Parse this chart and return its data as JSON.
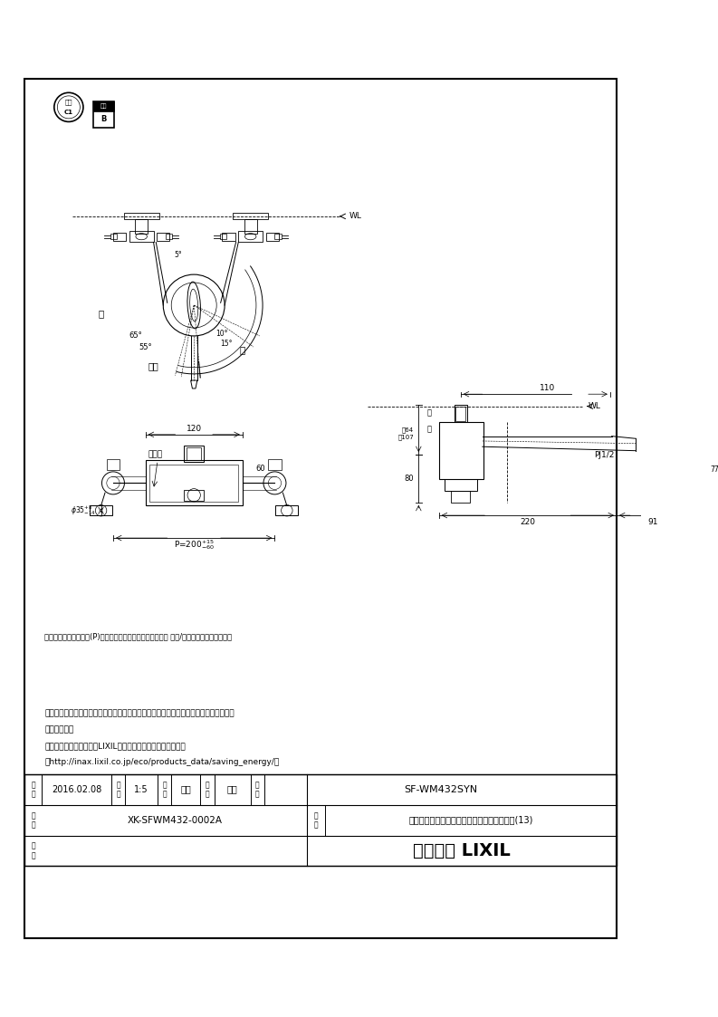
{
  "page_width": 7.93,
  "page_height": 11.23,
  "bg_color": "#ffffff",
  "line_color": "#000000",
  "notes": [
    "・流量調節栓は取付脚に付いています。取替えの際は、取付脚ごと交換してください。",
    "・（水抜式）",
    "・節湯記号については、LIXILホームページを参照ください。",
    "（http://inax.lixil.co.jp/eco/products_data/saving_energy/）"
  ],
  "dim_note": "＊印寸法は配管ピッチ(P)が最大～最小の場合を（標準寸法 標大/標小）で示しています。",
  "table_date": "2016.02.08",
  "table_scale": "1:5",
  "table_drawn_label": "製図",
  "table_checked_label": "検図",
  "table_drawn": "宮本",
  "table_checked": "池川",
  "table_product_num": "SF-WM432SYN",
  "table_drawing_num": "XK-SFWM432-0002A",
  "table_product_name": "キッチンシャワー付シングルレバー混合水栓(13)",
  "table_company": "株式会社 LIXIL",
  "label_date": "日付",
  "label_scale": "尺度",
  "label_drawing": "図番",
  "label_remarks": "備考",
  "label_product_num": "品番",
  "label_product_name": "品名",
  "label_yu": "湯",
  "label_mizu": "水",
  "label_konzou": "混合",
  "label_toritsuke": "取付脚",
  "label_kai": "開",
  "label_hei": "閉",
  "label_wl": "WL"
}
